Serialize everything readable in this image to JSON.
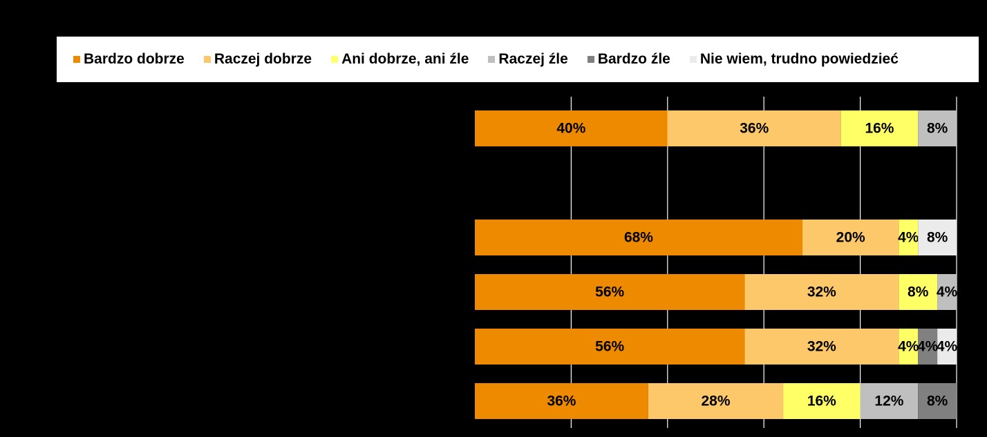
{
  "chart_data": {
    "type": "bar",
    "orientation": "horizontal",
    "stacked": true,
    "xlim": [
      0,
      100
    ],
    "grid": true,
    "legend_position": "top",
    "categories": [
      "",
      "",
      "",
      "",
      "",
      ""
    ],
    "series": [
      {
        "name": "Bardzo dobrze",
        "color": "#EE8A00",
        "values": [
          40,
          null,
          68,
          56,
          56,
          36
        ]
      },
      {
        "name": "Raczej dobrze",
        "color": "#FDC86A",
        "values": [
          36,
          null,
          20,
          32,
          32,
          28
        ]
      },
      {
        "name": "Ani dobrze, ani źle",
        "color": "#FFFF66",
        "values": [
          16,
          null,
          4,
          8,
          4,
          16
        ]
      },
      {
        "name": "Raczej źle",
        "color": "#BFBFBF",
        "values": [
          8,
          null,
          0,
          4,
          0,
          12
        ]
      },
      {
        "name": "Bardzo źle",
        "color": "#808080",
        "values": [
          0,
          null,
          0,
          0,
          4,
          8
        ]
      },
      {
        "name": "Nie wiem, trudno powiedzieć",
        "color": "#EBEBEB",
        "values": [
          0,
          null,
          8,
          0,
          4,
          0
        ]
      }
    ],
    "data_labels": [
      [
        "40%",
        "36%",
        "16%",
        "8%",
        "",
        ""
      ],
      null,
      [
        "68%",
        "20%",
        "4%",
        "",
        "",
        "8%"
      ],
      [
        "56%",
        "32%",
        "8%",
        "4%",
        "",
        ""
      ],
      [
        "56%",
        "32%",
        "4%",
        "",
        "4%",
        "4%"
      ],
      [
        "36%",
        "28%",
        "16%",
        "12%",
        "8%",
        ""
      ]
    ]
  }
}
